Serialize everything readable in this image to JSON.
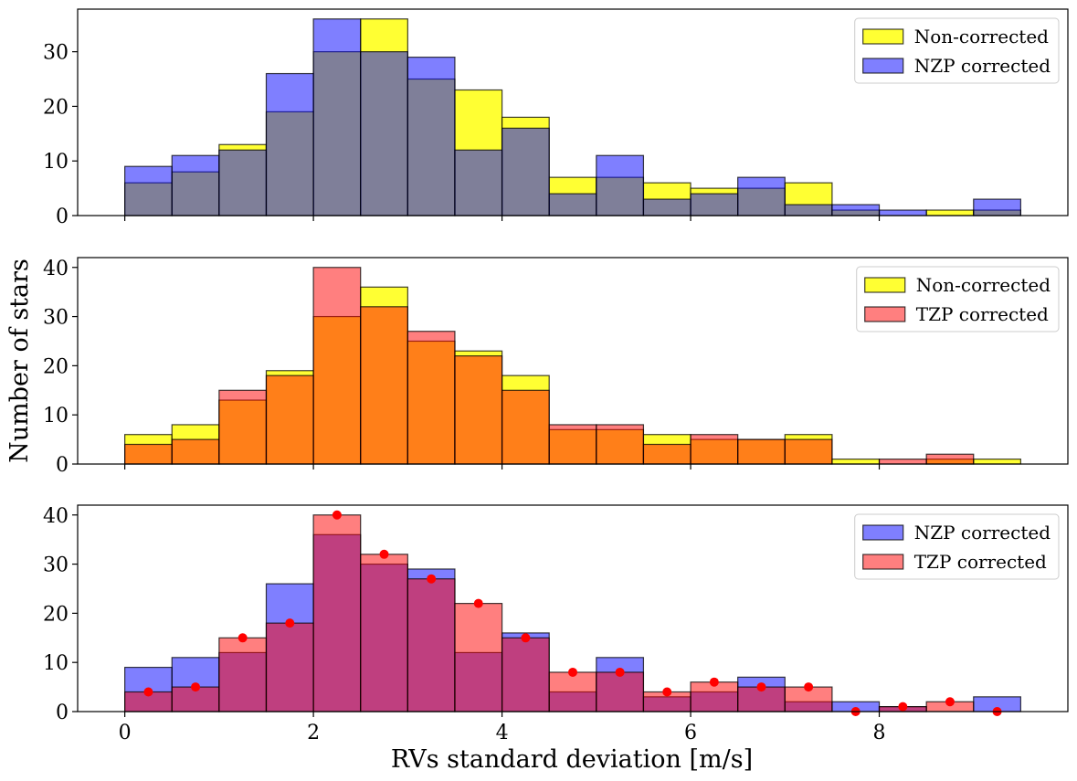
{
  "figure": {
    "ylabel": "Number of stars",
    "xlabel": "RVs standard deviation [m/s]"
  },
  "chart_data": [
    {
      "type": "bar",
      "x_bin_edges": [
        0,
        0.5,
        1,
        1.5,
        2,
        2.5,
        3,
        3.5,
        4,
        4.5,
        5,
        5.5,
        6,
        6.5,
        7,
        7.5,
        8,
        8.5,
        9,
        9.5
      ],
      "xlim": [
        -0.5,
        10
      ],
      "ylim": [
        0,
        37.8
      ],
      "yticks": [
        0,
        10,
        20,
        30
      ],
      "xticks": [
        0,
        2,
        4,
        6,
        8
      ],
      "show_xtick_labels": false,
      "legend_position": "top-right",
      "series": [
        {
          "name": "Non-corrected",
          "color": "#ffff00",
          "alpha": 0.8,
          "values": [
            6,
            8,
            13,
            19,
            30,
            36,
            25,
            23,
            18,
            7,
            7,
            6,
            5,
            5,
            6,
            1,
            0,
            1,
            1
          ]
        },
        {
          "name": "NZP corrected",
          "color": "#0000ff",
          "alpha": 0.5,
          "values": [
            9,
            11,
            12,
            26,
            36,
            30,
            29,
            12,
            16,
            4,
            11,
            3,
            4,
            7,
            2,
            2,
            1,
            0,
            3
          ]
        }
      ]
    },
    {
      "type": "bar",
      "x_bin_edges": [
        0,
        0.5,
        1,
        1.5,
        2,
        2.5,
        3,
        3.5,
        4,
        4.5,
        5,
        5.5,
        6,
        6.5,
        7,
        7.5,
        8,
        8.5,
        9,
        9.5
      ],
      "xlim": [
        -0.5,
        10
      ],
      "ylim": [
        0,
        42
      ],
      "yticks": [
        0,
        10,
        20,
        30,
        40
      ],
      "xticks": [
        0,
        2,
        4,
        6,
        8
      ],
      "show_xtick_labels": false,
      "legend_position": "top-right",
      "series": [
        {
          "name": "Non-corrected",
          "color": "#ffff00",
          "alpha": 0.8,
          "values": [
            6,
            8,
            13,
            19,
            30,
            36,
            25,
            23,
            18,
            7,
            7,
            6,
            5,
            5,
            6,
            1,
            0,
            1,
            1
          ]
        },
        {
          "name": "TZP corrected",
          "color": "#ff0000",
          "alpha": 0.5,
          "values": [
            4,
            5,
            15,
            18,
            40,
            32,
            27,
            22,
            15,
            8,
            8,
            4,
            6,
            5,
            5,
            0,
            1,
            2,
            0
          ]
        }
      ]
    },
    {
      "type": "bar",
      "x_bin_edges": [
        0,
        0.5,
        1,
        1.5,
        2,
        2.5,
        3,
        3.5,
        4,
        4.5,
        5,
        5.5,
        6,
        6.5,
        7,
        7.5,
        8,
        8.5,
        9,
        9.5
      ],
      "xlim": [
        -0.5,
        10
      ],
      "ylim": [
        0,
        42
      ],
      "yticks": [
        0,
        10,
        20,
        30,
        40
      ],
      "xticks": [
        0,
        2,
        4,
        6,
        8
      ],
      "show_xtick_labels": true,
      "legend_position": "top-right",
      "series": [
        {
          "name": "NZP corrected",
          "color": "#0000ff",
          "alpha": 0.5,
          "values": [
            9,
            11,
            12,
            26,
            36,
            30,
            29,
            12,
            16,
            4,
            11,
            3,
            4,
            7,
            2,
            2,
            1,
            0,
            3
          ]
        },
        {
          "name": "TZP corrected",
          "color": "#ff0000",
          "alpha": 0.5,
          "values": [
            4,
            5,
            15,
            18,
            40,
            32,
            27,
            22,
            15,
            8,
            8,
            4,
            6,
            5,
            5,
            0,
            1,
            2,
            0
          ]
        }
      ],
      "markers": {
        "color": "#ff0000",
        "x": [
          0.25,
          0.75,
          1.25,
          1.75,
          2.25,
          2.75,
          3.25,
          3.75,
          4.25,
          4.75,
          5.25,
          5.75,
          6.25,
          6.75,
          7.25,
          7.75,
          8.25,
          8.75,
          9.25
        ],
        "y": [
          4,
          5,
          15,
          18,
          40,
          32,
          27,
          22,
          15,
          8,
          8,
          4,
          6,
          5,
          5,
          0,
          1,
          2,
          0
        ]
      }
    }
  ]
}
